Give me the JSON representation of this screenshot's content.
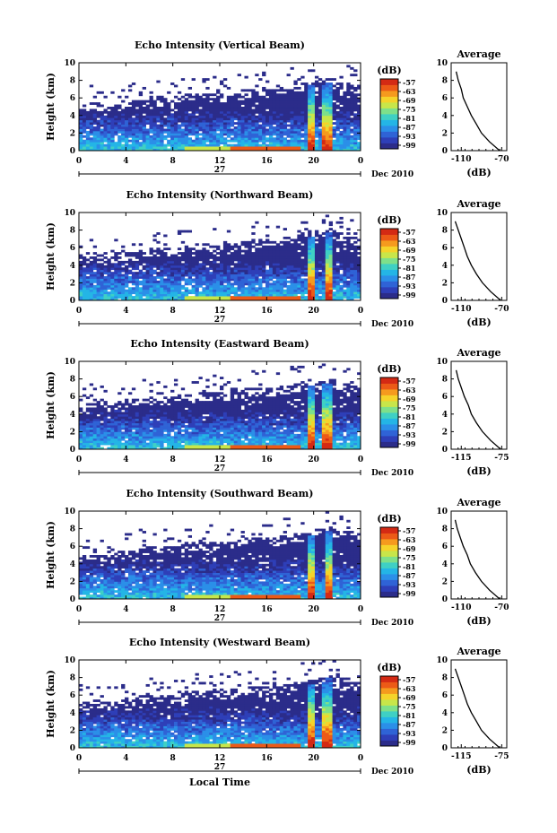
{
  "figure": {
    "xlabel": "Local Time",
    "date_label": "Dec 2010",
    "day_label": "27",
    "ylabel": "Height (km)",
    "colorbar_unit": "(dB)",
    "avg_title": "Average",
    "avg_xlabel": "(dB)"
  },
  "colors": {
    "scale": [
      "#2b2c8a",
      "#2e3fb8",
      "#2f63d6",
      "#2b8fe8",
      "#24b5e6",
      "#3fd0c4",
      "#7ee08a",
      "#c8e64a",
      "#f5d32a",
      "#f59a1e",
      "#ec5a17",
      "#d42a14"
    ],
    "weak_echo": "#2e3280"
  },
  "chart_data": [
    {
      "type": "heatmap",
      "title": "Echo Intensity (Vertical Beam)",
      "xlabel": "",
      "ylabel": "Height (km)",
      "xlim": [
        0,
        24
      ],
      "ylim": [
        0,
        10
      ],
      "xticks": [
        "0",
        "4",
        "8",
        "12",
        "16",
        "20",
        "0"
      ],
      "yticks": [
        "0",
        "2",
        "4",
        "6",
        "8",
        "10"
      ],
      "colorbar": {
        "unit": "(dB)",
        "ticks": [
          "-57",
          "-63",
          "-69",
          "-75",
          "-81",
          "-87",
          "-93",
          "-99"
        ]
      },
      "strong_echo_hours": [
        19.8,
        21.2
      ],
      "top_height_km": [
        4.2,
        4.5,
        4.2,
        4.6,
        4.8,
        5.0,
        5.2,
        5.0,
        5.3,
        5.5,
        5.6,
        5.5,
        5.6,
        5.8,
        6.0,
        6.2,
        6.0,
        6.3,
        6.5,
        6.8,
        7.0,
        7.2,
        6.8,
        6.5,
        6.2
      ],
      "average": {
        "title": "Average",
        "xlabel": "(dB)",
        "xticks": [
          "-110",
          "-70"
        ],
        "xlim": [
          -120,
          -65
        ],
        "heights": [
          0,
          1,
          2,
          3,
          4,
          5,
          6,
          7,
          8,
          9
        ],
        "values": [
          -72,
          -82,
          -90,
          -95,
          -100,
          -104,
          -108,
          -110,
          -113,
          -115
        ]
      }
    },
    {
      "type": "heatmap",
      "title": "Echo Intensity (Northward Beam)",
      "xlabel": "",
      "ylabel": "Height (km)",
      "xlim": [
        0,
        24
      ],
      "ylim": [
        0,
        10
      ],
      "xticks": [
        "0",
        "4",
        "8",
        "12",
        "16",
        "20",
        "0"
      ],
      "yticks": [
        "0",
        "2",
        "4",
        "6",
        "8",
        "10"
      ],
      "colorbar": {
        "unit": "(dB)",
        "ticks": [
          "-57",
          "-63",
          "-69",
          "-75",
          "-81",
          "-87",
          "-93",
          "-99"
        ]
      },
      "strong_echo_hours": [
        19.8,
        21.3
      ],
      "top_height_km": [
        4.0,
        4.3,
        4.1,
        4.4,
        4.6,
        4.8,
        5.0,
        4.9,
        5.1,
        5.3,
        5.4,
        5.3,
        5.5,
        5.6,
        5.8,
        6.0,
        5.9,
        6.2,
        6.4,
        6.7,
        6.9,
        7.1,
        6.7,
        6.3,
        6.0
      ],
      "average": {
        "title": "Average",
        "xlabel": "(dB)",
        "xticks": [
          "-110",
          "-70"
        ],
        "xlim": [
          -120,
          -65
        ],
        "heights": [
          0,
          1,
          2,
          3,
          4,
          5,
          6,
          7,
          8,
          9
        ],
        "values": [
          -71,
          -81,
          -89,
          -95,
          -100,
          -104,
          -107,
          -110,
          -113,
          -116
        ]
      }
    },
    {
      "type": "heatmap",
      "title": "Echo Intensity (Eastward Beam)",
      "xlabel": "",
      "ylabel": "Height (km)",
      "xlim": [
        0,
        24
      ],
      "ylim": [
        0,
        10
      ],
      "xticks": [
        "0",
        "4",
        "8",
        "12",
        "16",
        "20",
        "0"
      ],
      "yticks": [
        "0",
        "2",
        "4",
        "6",
        "8",
        "10"
      ],
      "colorbar": {
        "unit": "(dB)",
        "ticks": [
          "-57",
          "-63",
          "-69",
          "-75",
          "-81",
          "-87",
          "-93",
          "-99"
        ]
      },
      "strong_echo_hours": [
        19.8,
        21.2
      ],
      "top_height_km": [
        4.1,
        4.4,
        4.2,
        4.5,
        4.7,
        4.9,
        5.1,
        5.0,
        5.2,
        5.4,
        5.5,
        5.4,
        5.6,
        5.7,
        5.9,
        6.1,
        6.0,
        6.2,
        6.4,
        6.6,
        6.8,
        7.0,
        6.6,
        6.3,
        6.1
      ],
      "average": {
        "title": "Average",
        "xlabel": "(dB)",
        "xticks": [
          "-115",
          "-75"
        ],
        "xlim": [
          -125,
          -70
        ],
        "heights": [
          0,
          1,
          2,
          3,
          4,
          5,
          6,
          7,
          8,
          9
        ],
        "values": [
          -76,
          -86,
          -94,
          -100,
          -105,
          -108,
          -112,
          -115,
          -118,
          -120
        ]
      }
    },
    {
      "type": "heatmap",
      "title": "Echo Intensity (Southward Beam)",
      "xlabel": "",
      "ylabel": "Height (km)",
      "xlim": [
        0,
        24
      ],
      "ylim": [
        0,
        10
      ],
      "xticks": [
        "0",
        "4",
        "8",
        "12",
        "16",
        "20",
        "0"
      ],
      "yticks": [
        "0",
        "2",
        "4",
        "6",
        "8",
        "10"
      ],
      "colorbar": {
        "unit": "(dB)",
        "ticks": [
          "-57",
          "-63",
          "-69",
          "-75",
          "-81",
          "-87",
          "-93",
          "-99"
        ]
      },
      "strong_echo_hours": [
        19.9,
        21.3
      ],
      "top_height_km": [
        4.0,
        4.3,
        4.2,
        4.5,
        4.6,
        4.9,
        5.0,
        4.9,
        5.2,
        5.4,
        5.5,
        5.4,
        5.6,
        5.7,
        5.9,
        6.0,
        6.0,
        6.2,
        6.4,
        6.6,
        6.9,
        7.1,
        6.8,
        6.4,
        6.1
      ],
      "average": {
        "title": "Average",
        "xlabel": "(dB)",
        "xticks": [
          "-110",
          "-70"
        ],
        "xlim": [
          -120,
          -65
        ],
        "heights": [
          0,
          1,
          2,
          3,
          4,
          5,
          6,
          7,
          8,
          9
        ],
        "values": [
          -72,
          -82,
          -90,
          -96,
          -101,
          -104,
          -108,
          -111,
          -114,
          -116
        ]
      }
    },
    {
      "type": "heatmap",
      "title": "Echo Intensity (Westward Beam)",
      "xlabel": "Local Time",
      "ylabel": "Height (km)",
      "xlim": [
        0,
        24
      ],
      "ylim": [
        0,
        10
      ],
      "xticks": [
        "0",
        "4",
        "8",
        "12",
        "16",
        "20",
        "0"
      ],
      "yticks": [
        "0",
        "2",
        "4",
        "6",
        "8",
        "10"
      ],
      "colorbar": {
        "unit": "(dB)",
        "ticks": [
          "-57",
          "-63",
          "-69",
          "-75",
          "-81",
          "-87",
          "-93",
          "-99"
        ]
      },
      "strong_echo_hours": [
        19.8,
        21.2
      ],
      "top_height_km": [
        4.2,
        4.4,
        4.3,
        4.6,
        4.7,
        4.9,
        5.1,
        5.0,
        5.3,
        5.5,
        5.5,
        5.4,
        5.6,
        5.8,
        6.0,
        6.1,
        6.0,
        6.3,
        6.5,
        6.7,
        7.0,
        7.3,
        6.8,
        6.4,
        6.1
      ],
      "average": {
        "title": "Average",
        "xlabel": "(dB)",
        "xticks": [
          "-115",
          "-75"
        ],
        "xlim": [
          -125,
          -70
        ],
        "heights": [
          0,
          1,
          2,
          3,
          4,
          5,
          6,
          7,
          8,
          9
        ],
        "values": [
          -77,
          -87,
          -95,
          -100,
          -105,
          -109,
          -112,
          -115,
          -118,
          -121
        ]
      }
    }
  ]
}
